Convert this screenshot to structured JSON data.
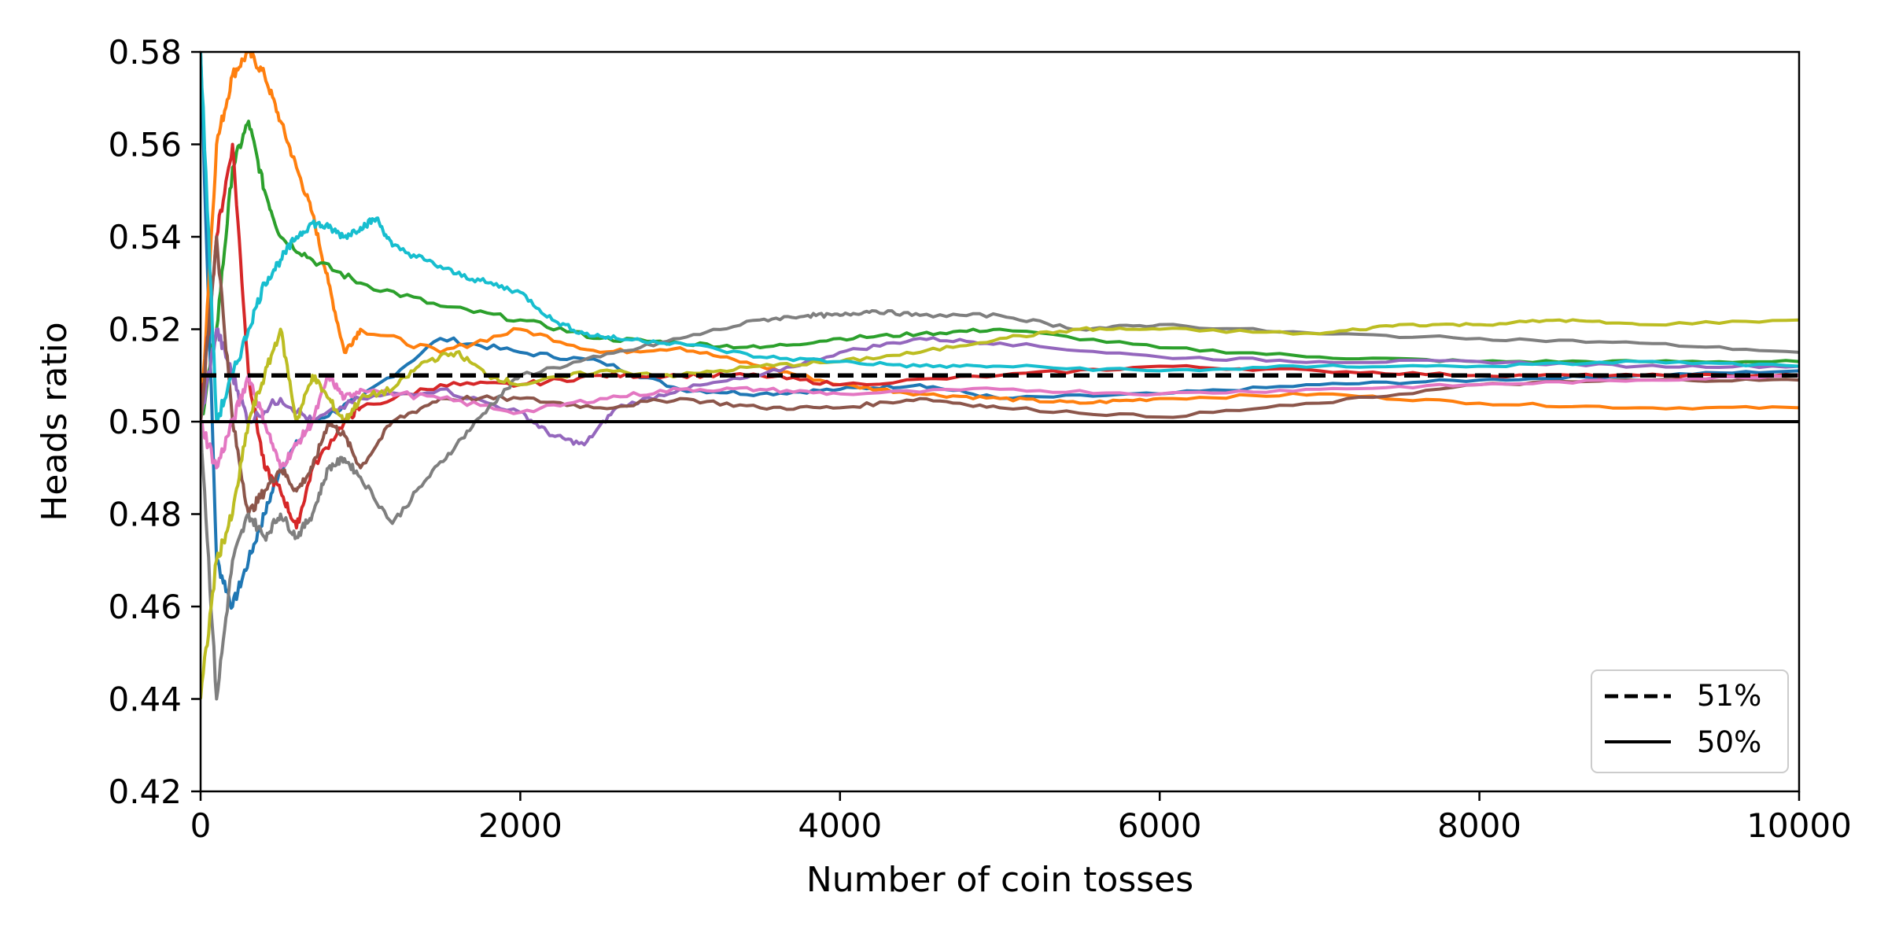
{
  "chart_data": {
    "type": "line",
    "title": "",
    "xlabel": "Number of coin tosses",
    "ylabel": "Heads ratio",
    "xlim": [
      0,
      10000
    ],
    "ylim": [
      0.42,
      0.58
    ],
    "xticks": [
      0,
      2000,
      4000,
      6000,
      8000,
      10000
    ],
    "xtick_labels": [
      "0",
      "2000",
      "4000",
      "6000",
      "8000",
      "10000"
    ],
    "yticks": [
      0.42,
      0.44,
      0.46,
      0.48,
      0.5,
      0.52,
      0.54,
      0.56,
      0.58
    ],
    "ytick_labels": [
      "0.42",
      "0.44",
      "0.46",
      "0.48",
      "0.50",
      "0.52",
      "0.54",
      "0.56",
      "0.58"
    ],
    "grid": false,
    "legend_position": "lower-right",
    "reference_lines": [
      {
        "label": "51%",
        "y": 0.51,
        "style": "dashed",
        "color": "#000000"
      },
      {
        "label": "50%",
        "y": 0.5,
        "style": "solid",
        "color": "#000000"
      }
    ],
    "series": [
      {
        "color": "#1f77b4",
        "x": [
          0,
          100,
          200,
          300,
          400,
          500,
          700,
          1000,
          1500,
          2000,
          2500,
          3000,
          3500,
          4000,
          4500,
          5000,
          6000,
          7000,
          8000,
          9000,
          10000
        ],
        "y": [
          0.58,
          0.47,
          0.46,
          0.47,
          0.48,
          0.49,
          0.5,
          0.505,
          0.518,
          0.515,
          0.513,
          0.507,
          0.506,
          0.507,
          0.508,
          0.505,
          0.506,
          0.508,
          0.509,
          0.51,
          0.511
        ]
      },
      {
        "color": "#ff7f0e",
        "x": [
          0,
          100,
          200,
          300,
          400,
          500,
          600,
          700,
          800,
          900,
          1000,
          1500,
          2000,
          2500,
          3000,
          3500,
          4000,
          4500,
          5000,
          5500,
          6000,
          7000,
          8000,
          9000,
          10000
        ],
        "y": [
          0.5,
          0.56,
          0.575,
          0.58,
          0.575,
          0.565,
          0.555,
          0.545,
          0.53,
          0.515,
          0.52,
          0.515,
          0.52,
          0.515,
          0.516,
          0.512,
          0.508,
          0.506,
          0.505,
          0.504,
          0.505,
          0.506,
          0.504,
          0.503,
          0.503
        ]
      },
      {
        "color": "#2ca02c",
        "x": [
          0,
          100,
          200,
          300,
          400,
          500,
          700,
          1000,
          1500,
          2000,
          2500,
          3000,
          3500,
          4000,
          4500,
          5000,
          6000,
          7000,
          8000,
          9000,
          10000
        ],
        "y": [
          0.5,
          0.52,
          0.555,
          0.565,
          0.55,
          0.54,
          0.535,
          0.53,
          0.525,
          0.522,
          0.518,
          0.517,
          0.516,
          0.518,
          0.519,
          0.52,
          0.516,
          0.514,
          0.513,
          0.513,
          0.513
        ]
      },
      {
        "color": "#d62728",
        "x": [
          0,
          100,
          200,
          300,
          400,
          500,
          600,
          700,
          900,
          1000,
          1500,
          2000,
          2500,
          3000,
          3500,
          4000,
          5000,
          6000,
          7000,
          8000,
          9000,
          10000
        ],
        "y": [
          0.5,
          0.54,
          0.56,
          0.51,
          0.49,
          0.485,
          0.477,
          0.49,
          0.5,
          0.503,
          0.508,
          0.508,
          0.51,
          0.51,
          0.51,
          0.508,
          0.51,
          0.512,
          0.511,
          0.51,
          0.51,
          0.51
        ]
      },
      {
        "color": "#9467bd",
        "x": [
          0,
          100,
          200,
          300,
          500,
          700,
          1000,
          1500,
          2000,
          2200,
          2400,
          2600,
          3000,
          3500,
          4000,
          4500,
          5000,
          6000,
          7000,
          8000,
          9000,
          10000
        ],
        "y": [
          0.5,
          0.52,
          0.51,
          0.5,
          0.505,
          0.5,
          0.505,
          0.507,
          0.502,
          0.497,
          0.495,
          0.503,
          0.507,
          0.51,
          0.515,
          0.518,
          0.517,
          0.514,
          0.513,
          0.513,
          0.512,
          0.512
        ]
      },
      {
        "color": "#8c564b",
        "x": [
          0,
          100,
          200,
          300,
          400,
          500,
          600,
          700,
          800,
          900,
          1000,
          1200,
          1500,
          2000,
          2500,
          3000,
          3500,
          4000,
          4500,
          5000,
          6000,
          7000,
          8000,
          9000,
          10000
        ],
        "y": [
          0.5,
          0.54,
          0.5,
          0.48,
          0.485,
          0.49,
          0.485,
          0.49,
          0.5,
          0.497,
          0.49,
          0.5,
          0.505,
          0.505,
          0.503,
          0.505,
          0.503,
          0.503,
          0.505,
          0.503,
          0.501,
          0.504,
          0.508,
          0.509,
          0.509
        ]
      },
      {
        "color": "#e377c2",
        "x": [
          0,
          100,
          200,
          300,
          400,
          500,
          600,
          700,
          800,
          900,
          1000,
          1500,
          2000,
          2500,
          3000,
          3500,
          4000,
          5000,
          6000,
          7000,
          8000,
          9000,
          10000
        ],
        "y": [
          0.5,
          0.49,
          0.5,
          0.51,
          0.5,
          0.49,
          0.495,
          0.5,
          0.51,
          0.505,
          0.507,
          0.505,
          0.502,
          0.505,
          0.507,
          0.507,
          0.506,
          0.507,
          0.506,
          0.507,
          0.508,
          0.509,
          0.51
        ]
      },
      {
        "color": "#7f7f7f",
        "x": [
          0,
          100,
          200,
          300,
          400,
          500,
          600,
          700,
          800,
          900,
          1000,
          1200,
          1400,
          1600,
          1800,
          2000,
          2500,
          3000,
          3500,
          3800,
          4000,
          4200,
          4500,
          5000,
          5500,
          6000,
          7000,
          8000,
          9000,
          10000
        ],
        "y": [
          0.5,
          0.44,
          0.47,
          0.48,
          0.475,
          0.48,
          0.475,
          0.48,
          0.49,
          0.492,
          0.488,
          0.478,
          0.487,
          0.495,
          0.503,
          0.51,
          0.514,
          0.518,
          0.522,
          0.523,
          0.523,
          0.524,
          0.523,
          0.523,
          0.52,
          0.521,
          0.519,
          0.518,
          0.517,
          0.515
        ]
      },
      {
        "color": "#bcbd22",
        "x": [
          0,
          100,
          200,
          300,
          400,
          500,
          600,
          700,
          800,
          900,
          1000,
          1200,
          1400,
          1600,
          1800,
          2000,
          2500,
          3000,
          3500,
          4000,
          4500,
          5000,
          5500,
          6000,
          7000,
          7500,
          8000,
          8500,
          9000,
          10000
        ],
        "y": [
          0.44,
          0.47,
          0.48,
          0.5,
          0.51,
          0.52,
          0.5,
          0.51,
          0.505,
          0.5,
          0.505,
          0.507,
          0.513,
          0.515,
          0.51,
          0.508,
          0.511,
          0.51,
          0.512,
          0.513,
          0.515,
          0.518,
          0.52,
          0.52,
          0.519,
          0.521,
          0.521,
          0.522,
          0.521,
          0.522
        ]
      },
      {
        "color": "#17becf",
        "x": [
          0,
          100,
          200,
          300,
          400,
          500,
          600,
          700,
          800,
          900,
          1000,
          1100,
          1200,
          1400,
          1600,
          1800,
          2000,
          2200,
          2400,
          2600,
          3000,
          3500,
          4000,
          4500,
          5000,
          6000,
          7000,
          8000,
          9000,
          10000
        ],
        "y": [
          0.58,
          0.5,
          0.51,
          0.52,
          0.53,
          0.535,
          0.54,
          0.543,
          0.542,
          0.54,
          0.542,
          0.544,
          0.538,
          0.535,
          0.532,
          0.53,
          0.528,
          0.522,
          0.519,
          0.518,
          0.517,
          0.514,
          0.513,
          0.512,
          0.512,
          0.511,
          0.512,
          0.512,
          0.513,
          0.512
        ]
      }
    ]
  }
}
